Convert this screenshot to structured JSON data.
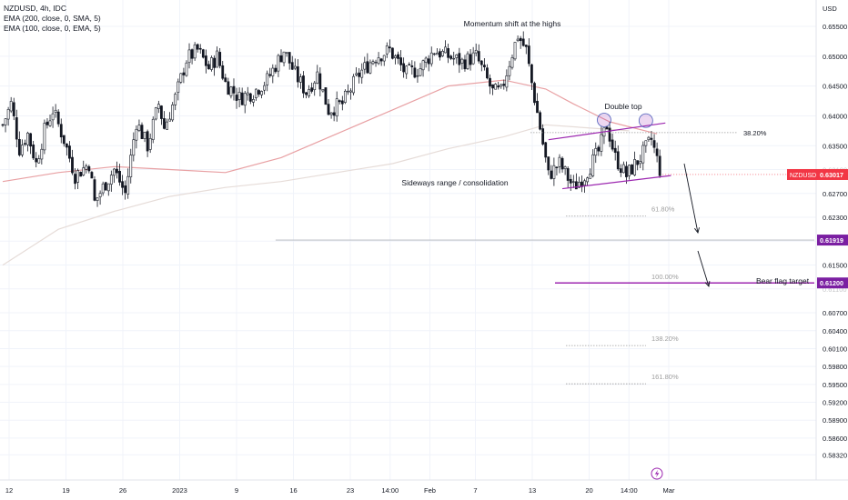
{
  "legend": {
    "symbol": "NZDUSD, 4h, IDC",
    "ema200": "EMA (200, close, 0, SMA, 5)",
    "ema100": "EMA (100, close, 0, EMA, 5)"
  },
  "currency_label": "USD",
  "tv_icon": "lightning-icon",
  "colors": {
    "candle": "#131722",
    "ema100": "#e8a0a3",
    "ema200": "#e6dcd8",
    "trendline": "#9c27b0",
    "fib": "#9e9e9e",
    "price_tag": "#f23645",
    "level_tag": "#7b1fa2"
  },
  "chart_data": {
    "type": "candlestick",
    "symbol": "NZDUSD",
    "timeframe": "4h",
    "y_axis": {
      "min": 0.5805,
      "max": 0.6582,
      "ticks": [
        0.655,
        0.65,
        0.645,
        0.64,
        0.635,
        0.631,
        0.627,
        0.623,
        0.619,
        0.615,
        0.611,
        0.607,
        0.604,
        0.601,
        0.598,
        0.595,
        0.592,
        0.589,
        0.586,
        0.5832
      ],
      "tick_labels": [
        "0.65500",
        "0.65000",
        "0.64500",
        "0.64000",
        "0.63500",
        "0.63100",
        "0.62700",
        "0.62300",
        "0.61900",
        "0.61500",
        "0.61100",
        "0.60700",
        "0.60400",
        "0.60100",
        "0.59800",
        "0.59500",
        "0.59200",
        "0.58900",
        "0.58600",
        "0.58320"
      ]
    },
    "x_axis": {
      "labels": [
        "12",
        "19",
        "26",
        "2023",
        "9",
        "16",
        "23",
        "14:00",
        "Feb",
        "7",
        "13",
        "20",
        "14:00",
        "Mar"
      ],
      "label_index": [
        0,
        10,
        20,
        30,
        40,
        50,
        60,
        67,
        74,
        82,
        92,
        102,
        109,
        116
      ]
    },
    "price_path": [
      [
        0,
        0.6385
      ],
      [
        3,
        0.642
      ],
      [
        6,
        0.6345
      ],
      [
        9,
        0.637
      ],
      [
        12,
        0.632
      ],
      [
        15,
        0.6375
      ],
      [
        18,
        0.641
      ],
      [
        22,
        0.636
      ],
      [
        26,
        0.63
      ],
      [
        31,
        0.632
      ],
      [
        33,
        0.6255
      ],
      [
        36,
        0.628
      ],
      [
        40,
        0.631
      ],
      [
        44,
        0.627
      ],
      [
        48,
        0.639
      ],
      [
        52,
        0.635
      ],
      [
        56,
        0.642
      ],
      [
        58,
        0.638
      ],
      [
        62,
        0.643
      ],
      [
        66,
        0.6495
      ],
      [
        70,
        0.651
      ],
      [
        74,
        0.648
      ],
      [
        77,
        0.65
      ],
      [
        80,
        0.6455
      ],
      [
        85,
        0.643
      ],
      [
        90,
        0.644
      ],
      [
        95,
        0.646
      ],
      [
        101,
        0.651
      ],
      [
        105,
        0.647
      ],
      [
        109,
        0.644
      ],
      [
        113,
        0.647
      ],
      [
        117,
        0.641
      ],
      [
        122,
        0.642
      ],
      [
        128,
        0.647
      ],
      [
        134,
        0.65
      ],
      [
        139,
        0.651
      ],
      [
        145,
        0.647
      ],
      [
        150,
        0.648
      ],
      [
        155,
        0.651
      ],
      [
        160,
        0.65
      ],
      [
        165,
        0.649
      ],
      [
        170,
        0.65
      ],
      [
        173,
        0.647
      ],
      [
        176,
        0.644
      ],
      [
        179,
        0.644
      ],
      [
        182,
        0.649
      ],
      [
        185,
        0.6535
      ],
      [
        188,
        0.651
      ],
      [
        190,
        0.6455
      ],
      [
        193,
        0.638
      ],
      [
        196,
        0.63
      ],
      [
        200,
        0.632
      ],
      [
        205,
        0.628
      ],
      [
        209,
        0.63
      ],
      [
        214,
        0.634
      ],
      [
        217,
        0.6385
      ],
      [
        220,
        0.633
      ],
      [
        224,
        0.63
      ],
      [
        229,
        0.633
      ],
      [
        233,
        0.636
      ],
      [
        236,
        0.631
      ]
    ],
    "ema_200": [
      [
        0,
        0.615
      ],
      [
        20,
        0.621
      ],
      [
        40,
        0.624
      ],
      [
        60,
        0.6265
      ],
      [
        80,
        0.628
      ],
      [
        100,
        0.629
      ],
      [
        120,
        0.6305
      ],
      [
        140,
        0.632
      ],
      [
        160,
        0.6345
      ],
      [
        180,
        0.6365
      ],
      [
        195,
        0.6385
      ],
      [
        210,
        0.638
      ],
      [
        225,
        0.6375
      ]
    ],
    "ema_100": [
      [
        0,
        0.629
      ],
      [
        20,
        0.6305
      ],
      [
        40,
        0.6315
      ],
      [
        60,
        0.631
      ],
      [
        80,
        0.6305
      ],
      [
        100,
        0.633
      ],
      [
        120,
        0.637
      ],
      [
        140,
        0.641
      ],
      [
        160,
        0.645
      ],
      [
        180,
        0.646
      ],
      [
        195,
        0.6445
      ],
      [
        205,
        0.642
      ],
      [
        218,
        0.639
      ],
      [
        235,
        0.637
      ]
    ],
    "current_price": {
      "symbol": "NZDUSD",
      "value": "0.63017",
      "num": 0.63017
    },
    "level_0_61919": {
      "value": "0.61919",
      "num": 0.61919
    },
    "level_0_61200": {
      "value": "0.61200",
      "num": 0.612
    },
    "fib_levels": [
      {
        "label": "38.20%",
        "price": 0.6372
      },
      {
        "label": "61.80%",
        "price": 0.6232
      },
      {
        "label": "100.00%",
        "price": 0.612
      },
      {
        "label": "138.20%",
        "price": 0.6015
      },
      {
        "label": "161.80%",
        "price": 0.5951
      }
    ],
    "annotations": {
      "momentum": "Momentum shift at the highs",
      "double_top": "Double top",
      "sideways": "Sideways range / consolidation",
      "bear_flag": "Bear flag target"
    }
  }
}
